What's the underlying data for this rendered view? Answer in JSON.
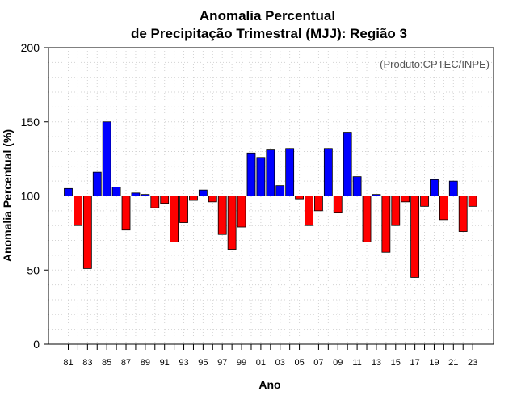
{
  "chart_data": {
    "type": "bar",
    "title_line1": "Anomalia Percentual",
    "title_line2": "de Precipitação Trimestral (MJJ): Região 3",
    "xlabel": "Ano",
    "ylabel": "Anomalia Percentual (%)",
    "credit": "(Produto:CPTEC/INPE)",
    "baseline": 100,
    "ylim": [
      0,
      200
    ],
    "yticks": [
      0,
      50,
      100,
      150,
      200
    ],
    "categories": [
      "81",
      "82",
      "83",
      "84",
      "85",
      "86",
      "87",
      "88",
      "89",
      "90",
      "91",
      "92",
      "93",
      "94",
      "95",
      "96",
      "97",
      "98",
      "99",
      "00",
      "01",
      "02",
      "03",
      "04",
      "05",
      "06",
      "07",
      "08",
      "09",
      "10",
      "11",
      "12",
      "13",
      "14",
      "15",
      "16",
      "17",
      "18",
      "19",
      "20",
      "21",
      "22",
      "23"
    ],
    "xtick_labels": [
      "81",
      "83",
      "85",
      "87",
      "89",
      "91",
      "93",
      "95",
      "97",
      "99",
      "01",
      "03",
      "05",
      "07",
      "09",
      "11",
      "13",
      "15",
      "17",
      "19",
      "21",
      "23"
    ],
    "values": [
      105,
      80,
      51,
      116,
      150,
      106,
      77,
      102,
      101,
      92,
      95,
      69,
      82,
      97,
      104,
      96,
      74,
      64,
      79,
      129,
      126,
      131,
      107,
      132,
      98,
      80,
      90,
      132,
      89,
      143,
      113,
      69,
      101,
      62,
      80,
      96,
      45,
      93,
      111,
      84,
      110,
      76,
      93
    ],
    "colors": {
      "above": "#0000ff",
      "below": "#ff0000",
      "outline": "#000000",
      "grid": "#d3d3d3"
    }
  }
}
